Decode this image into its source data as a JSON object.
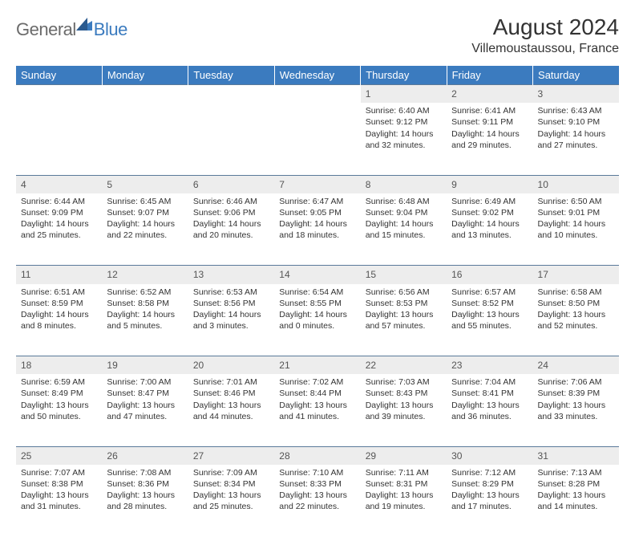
{
  "brand": {
    "text1": "General",
    "text2": "Blue"
  },
  "title": "August 2024",
  "location": "Villemoustaussou, France",
  "colors": {
    "header_bg": "#3b7bbf",
    "header_text": "#ffffff",
    "daynum_bg": "#ededed",
    "row_divider": "#5a7a9a",
    "body_text": "#333333",
    "logo_gray": "#6b6b6b",
    "logo_blue": "#3b7bbf",
    "page_bg": "#ffffff"
  },
  "weekdays": [
    "Sunday",
    "Monday",
    "Tuesday",
    "Wednesday",
    "Thursday",
    "Friday",
    "Saturday"
  ],
  "weeks": [
    {
      "nums": [
        "",
        "",
        "",
        "",
        "1",
        "2",
        "3"
      ],
      "cells": [
        null,
        null,
        null,
        null,
        {
          "sunrise": "6:40 AM",
          "sunset": "9:12 PM",
          "daylight": "14 hours and 32 minutes."
        },
        {
          "sunrise": "6:41 AM",
          "sunset": "9:11 PM",
          "daylight": "14 hours and 29 minutes."
        },
        {
          "sunrise": "6:43 AM",
          "sunset": "9:10 PM",
          "daylight": "14 hours and 27 minutes."
        }
      ]
    },
    {
      "nums": [
        "4",
        "5",
        "6",
        "7",
        "8",
        "9",
        "10"
      ],
      "cells": [
        {
          "sunrise": "6:44 AM",
          "sunset": "9:09 PM",
          "daylight": "14 hours and 25 minutes."
        },
        {
          "sunrise": "6:45 AM",
          "sunset": "9:07 PM",
          "daylight": "14 hours and 22 minutes."
        },
        {
          "sunrise": "6:46 AM",
          "sunset": "9:06 PM",
          "daylight": "14 hours and 20 minutes."
        },
        {
          "sunrise": "6:47 AM",
          "sunset": "9:05 PM",
          "daylight": "14 hours and 18 minutes."
        },
        {
          "sunrise": "6:48 AM",
          "sunset": "9:04 PM",
          "daylight": "14 hours and 15 minutes."
        },
        {
          "sunrise": "6:49 AM",
          "sunset": "9:02 PM",
          "daylight": "14 hours and 13 minutes."
        },
        {
          "sunrise": "6:50 AM",
          "sunset": "9:01 PM",
          "daylight": "14 hours and 10 minutes."
        }
      ]
    },
    {
      "nums": [
        "11",
        "12",
        "13",
        "14",
        "15",
        "16",
        "17"
      ],
      "cells": [
        {
          "sunrise": "6:51 AM",
          "sunset": "8:59 PM",
          "daylight": "14 hours and 8 minutes."
        },
        {
          "sunrise": "6:52 AM",
          "sunset": "8:58 PM",
          "daylight": "14 hours and 5 minutes."
        },
        {
          "sunrise": "6:53 AM",
          "sunset": "8:56 PM",
          "daylight": "14 hours and 3 minutes."
        },
        {
          "sunrise": "6:54 AM",
          "sunset": "8:55 PM",
          "daylight": "14 hours and 0 minutes."
        },
        {
          "sunrise": "6:56 AM",
          "sunset": "8:53 PM",
          "daylight": "13 hours and 57 minutes."
        },
        {
          "sunrise": "6:57 AM",
          "sunset": "8:52 PM",
          "daylight": "13 hours and 55 minutes."
        },
        {
          "sunrise": "6:58 AM",
          "sunset": "8:50 PM",
          "daylight": "13 hours and 52 minutes."
        }
      ]
    },
    {
      "nums": [
        "18",
        "19",
        "20",
        "21",
        "22",
        "23",
        "24"
      ],
      "cells": [
        {
          "sunrise": "6:59 AM",
          "sunset": "8:49 PM",
          "daylight": "13 hours and 50 minutes."
        },
        {
          "sunrise": "7:00 AM",
          "sunset": "8:47 PM",
          "daylight": "13 hours and 47 minutes."
        },
        {
          "sunrise": "7:01 AM",
          "sunset": "8:46 PM",
          "daylight": "13 hours and 44 minutes."
        },
        {
          "sunrise": "7:02 AM",
          "sunset": "8:44 PM",
          "daylight": "13 hours and 41 minutes."
        },
        {
          "sunrise": "7:03 AM",
          "sunset": "8:43 PM",
          "daylight": "13 hours and 39 minutes."
        },
        {
          "sunrise": "7:04 AM",
          "sunset": "8:41 PM",
          "daylight": "13 hours and 36 minutes."
        },
        {
          "sunrise": "7:06 AM",
          "sunset": "8:39 PM",
          "daylight": "13 hours and 33 minutes."
        }
      ]
    },
    {
      "nums": [
        "25",
        "26",
        "27",
        "28",
        "29",
        "30",
        "31"
      ],
      "cells": [
        {
          "sunrise": "7:07 AM",
          "sunset": "8:38 PM",
          "daylight": "13 hours and 31 minutes."
        },
        {
          "sunrise": "7:08 AM",
          "sunset": "8:36 PM",
          "daylight": "13 hours and 28 minutes."
        },
        {
          "sunrise": "7:09 AM",
          "sunset": "8:34 PM",
          "daylight": "13 hours and 25 minutes."
        },
        {
          "sunrise": "7:10 AM",
          "sunset": "8:33 PM",
          "daylight": "13 hours and 22 minutes."
        },
        {
          "sunrise": "7:11 AM",
          "sunset": "8:31 PM",
          "daylight": "13 hours and 19 minutes."
        },
        {
          "sunrise": "7:12 AM",
          "sunset": "8:29 PM",
          "daylight": "13 hours and 17 minutes."
        },
        {
          "sunrise": "7:13 AM",
          "sunset": "8:28 PM",
          "daylight": "13 hours and 14 minutes."
        }
      ]
    }
  ],
  "labels": {
    "sunrise": "Sunrise:",
    "sunset": "Sunset:",
    "daylight": "Daylight:"
  }
}
